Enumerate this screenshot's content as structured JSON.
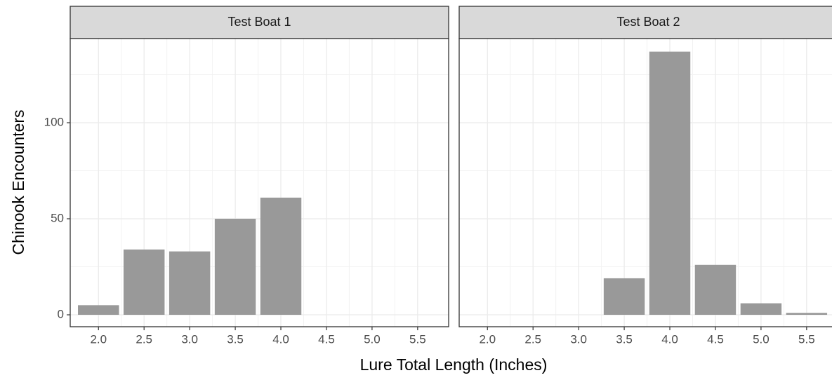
{
  "chart_data": {
    "type": "bar",
    "x_label": "Lure Total Length (Inches)",
    "y_label": "Chinook Encounters",
    "color": "#999999",
    "grid": true,
    "xlim": [
      1.69,
      5.84
    ],
    "ylim": [
      -6.2,
      143.8
    ],
    "xticks": [
      {
        "value": 2,
        "label": "2.0"
      },
      2.5,
      {
        "value": 3,
        "label": "3.0"
      },
      3.5,
      {
        "value": 4,
        "label": "4.0"
      },
      4.5,
      {
        "value": 5,
        "label": "5.0"
      },
      5.5
    ],
    "yticks": [
      0,
      50,
      100
    ],
    "panels": [
      {
        "title": "Test Boat 1",
        "x": [
          2,
          2.5,
          3,
          3.5,
          4
        ],
        "values": [
          5,
          34,
          33,
          50,
          61
        ]
      },
      {
        "title": "Test Boat 2",
        "x": [
          3.5,
          4,
          4.5,
          5,
          5.5
        ],
        "values": [
          19,
          137,
          26,
          6,
          1
        ]
      }
    ]
  }
}
